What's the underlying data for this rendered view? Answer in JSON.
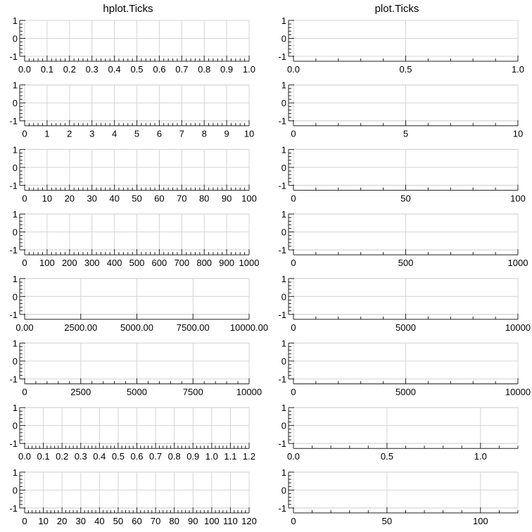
{
  "column_titles": [
    "hplot.Ticks",
    "plot.Ticks"
  ],
  "chart_data": [
    {
      "type": "line",
      "column": 0,
      "row": 0,
      "xlim": [
        0,
        1
      ],
      "ylim": [
        -1,
        1
      ],
      "x_ticks": [
        0,
        0.1,
        0.2,
        0.3,
        0.4,
        0.5,
        0.6,
        0.7,
        0.8,
        0.9,
        1.0
      ],
      "x_tick_labels": [
        "0.0",
        "0.1",
        "0.2",
        "0.3",
        "0.4",
        "0.5",
        "0.6",
        "0.7",
        "0.8",
        "0.9",
        "1.0"
      ],
      "x_minor_per_major": 4,
      "y_ticks": [
        -1,
        0,
        1
      ],
      "y_tick_labels": [
        "-1",
        "0",
        "1"
      ],
      "grid": true,
      "series": []
    },
    {
      "type": "line",
      "column": 1,
      "row": 0,
      "xlim": [
        0,
        1
      ],
      "ylim": [
        -1,
        1
      ],
      "x_ticks": [
        0,
        0.5,
        1.0
      ],
      "x_tick_labels": [
        "0.0",
        "0.5",
        "1.0"
      ],
      "x_minor_per_major": 4,
      "y_ticks": [
        -1,
        0,
        1
      ],
      "y_tick_labels": [
        "-1",
        "0",
        "1"
      ],
      "grid": true,
      "series": []
    },
    {
      "type": "line",
      "column": 0,
      "row": 1,
      "xlim": [
        0,
        10
      ],
      "ylim": [
        -1,
        1
      ],
      "x_ticks": [
        0,
        1,
        2,
        3,
        4,
        5,
        6,
        7,
        8,
        9,
        10
      ],
      "x_tick_labels": [
        "0",
        "1",
        "2",
        "3",
        "4",
        "5",
        "6",
        "7",
        "8",
        "9",
        "10"
      ],
      "x_minor_per_major": 4,
      "y_ticks": [
        -1,
        0,
        1
      ],
      "y_tick_labels": [
        "-1",
        "0",
        "1"
      ],
      "grid": true,
      "series": []
    },
    {
      "type": "line",
      "column": 1,
      "row": 1,
      "xlim": [
        0,
        10
      ],
      "ylim": [
        -1,
        1
      ],
      "x_ticks": [
        0,
        5,
        10
      ],
      "x_tick_labels": [
        "0",
        "5",
        "10"
      ],
      "x_minor_per_major": 4,
      "y_ticks": [
        -1,
        0,
        1
      ],
      "y_tick_labels": [
        "-1",
        "0",
        "1"
      ],
      "grid": true,
      "series": []
    },
    {
      "type": "line",
      "column": 0,
      "row": 2,
      "xlim": [
        0,
        100
      ],
      "ylim": [
        -1,
        1
      ],
      "x_ticks": [
        0,
        10,
        20,
        30,
        40,
        50,
        60,
        70,
        80,
        90,
        100
      ],
      "x_tick_labels": [
        "0",
        "10",
        "20",
        "30",
        "40",
        "50",
        "60",
        "70",
        "80",
        "90",
        "100"
      ],
      "x_minor_per_major": 4,
      "y_ticks": [
        -1,
        0,
        1
      ],
      "y_tick_labels": [
        "-1",
        "0",
        "1"
      ],
      "grid": true,
      "series": []
    },
    {
      "type": "line",
      "column": 1,
      "row": 2,
      "xlim": [
        0,
        100
      ],
      "ylim": [
        -1,
        1
      ],
      "x_ticks": [
        0,
        50,
        100
      ],
      "x_tick_labels": [
        "0",
        "50",
        "100"
      ],
      "x_minor_per_major": 4,
      "y_ticks": [
        -1,
        0,
        1
      ],
      "y_tick_labels": [
        "-1",
        "0",
        "1"
      ],
      "grid": true,
      "series": []
    },
    {
      "type": "line",
      "column": 0,
      "row": 3,
      "xlim": [
        0,
        1000
      ],
      "ylim": [
        -1,
        1
      ],
      "x_ticks": [
        0,
        100,
        200,
        300,
        400,
        500,
        600,
        700,
        800,
        900,
        1000
      ],
      "x_tick_labels": [
        "0",
        "100",
        "200",
        "300",
        "400",
        "500",
        "600",
        "700",
        "800",
        "900",
        "1000"
      ],
      "x_minor_per_major": 4,
      "y_ticks": [
        -1,
        0,
        1
      ],
      "y_tick_labels": [
        "-1",
        "0",
        "1"
      ],
      "grid": true,
      "series": []
    },
    {
      "type": "line",
      "column": 1,
      "row": 3,
      "xlim": [
        0,
        1000
      ],
      "ylim": [
        -1,
        1
      ],
      "x_ticks": [
        0,
        500,
        1000
      ],
      "x_tick_labels": [
        "0",
        "500",
        "1000"
      ],
      "x_minor_per_major": 4,
      "y_ticks": [
        -1,
        0,
        1
      ],
      "y_tick_labels": [
        "-1",
        "0",
        "1"
      ],
      "grid": true,
      "series": []
    },
    {
      "type": "line",
      "column": 0,
      "row": 4,
      "xlim": [
        0,
        10000
      ],
      "ylim": [
        -1,
        1
      ],
      "x_ticks": [
        0,
        2500,
        5000,
        7500,
        10000
      ],
      "x_tick_labels": [
        "0.00",
        "2500.00",
        "5000.00",
        "7500.00",
        "10000.00"
      ],
      "x_minor_per_major": 0,
      "y_ticks": [
        -1,
        0,
        1
      ],
      "y_tick_labels": [
        "-1",
        "0",
        "1"
      ],
      "grid": true,
      "series": []
    },
    {
      "type": "line",
      "column": 1,
      "row": 4,
      "xlim": [
        0,
        10000
      ],
      "ylim": [
        -1,
        1
      ],
      "x_ticks": [
        0,
        5000,
        10000
      ],
      "x_tick_labels": [
        "0",
        "5000",
        "10000"
      ],
      "x_minor_per_major": 4,
      "y_ticks": [
        -1,
        0,
        1
      ],
      "y_tick_labels": [
        "-1",
        "0",
        "1"
      ],
      "grid": true,
      "series": []
    },
    {
      "type": "line",
      "column": 0,
      "row": 5,
      "xlim": [
        0,
        10000
      ],
      "ylim": [
        -1,
        1
      ],
      "x_ticks": [
        0,
        2500,
        5000,
        7500,
        10000
      ],
      "x_tick_labels": [
        "0",
        "2500",
        "5000",
        "7500",
        "10000"
      ],
      "x_minor_per_major": 4,
      "y_ticks": [
        -1,
        0,
        1
      ],
      "y_tick_labels": [
        "-1",
        "0",
        "1"
      ],
      "grid": true,
      "series": []
    },
    {
      "type": "line",
      "column": 1,
      "row": 5,
      "xlim": [
        0,
        10000
      ],
      "ylim": [
        -1,
        1
      ],
      "x_ticks": [
        0,
        5000,
        10000
      ],
      "x_tick_labels": [
        "0",
        "5000",
        "10000"
      ],
      "x_minor_per_major": 4,
      "y_ticks": [
        -1,
        0,
        1
      ],
      "y_tick_labels": [
        "-1",
        "0",
        "1"
      ],
      "grid": true,
      "series": []
    },
    {
      "type": "line",
      "column": 0,
      "row": 6,
      "xlim": [
        0,
        1.2
      ],
      "ylim": [
        -1,
        1
      ],
      "x_ticks": [
        0,
        0.1,
        0.2,
        0.3,
        0.4,
        0.5,
        0.6,
        0.7,
        0.8,
        0.9,
        1.0,
        1.1,
        1.2
      ],
      "x_tick_labels": [
        "0.0",
        "0.1",
        "0.2",
        "0.3",
        "0.4",
        "0.5",
        "0.6",
        "0.7",
        "0.8",
        "0.9",
        "1.0",
        "1.1",
        "1.2"
      ],
      "x_minor_per_major": 4,
      "y_ticks": [
        -1,
        0,
        1
      ],
      "y_tick_labels": [
        "-1",
        "0",
        "1"
      ],
      "grid": true,
      "series": []
    },
    {
      "type": "line",
      "column": 1,
      "row": 6,
      "xlim": [
        0,
        1.2
      ],
      "ylim": [
        -1,
        1
      ],
      "x_ticks": [
        0,
        0.5,
        1.0
      ],
      "x_tick_labels": [
        "0.0",
        "0.5",
        "1.0"
      ],
      "x_minor_per_major": 4,
      "y_ticks": [
        -1,
        0,
        1
      ],
      "y_tick_labels": [
        "-1",
        "0",
        "1"
      ],
      "grid": true,
      "series": []
    },
    {
      "type": "line",
      "column": 0,
      "row": 7,
      "xlim": [
        0,
        120
      ],
      "ylim": [
        -1,
        1
      ],
      "x_ticks": [
        0,
        10,
        20,
        30,
        40,
        50,
        60,
        70,
        80,
        90,
        100,
        110,
        120
      ],
      "x_tick_labels": [
        "0",
        "10",
        "20",
        "30",
        "40",
        "50",
        "60",
        "70",
        "80",
        "90",
        "100",
        "110",
        "120"
      ],
      "x_minor_per_major": 4,
      "y_ticks": [
        -1,
        0,
        1
      ],
      "y_tick_labels": [
        "-1",
        "0",
        "1"
      ],
      "grid": true,
      "series": []
    },
    {
      "type": "line",
      "column": 1,
      "row": 7,
      "xlim": [
        0,
        120
      ],
      "ylim": [
        -1,
        1
      ],
      "x_ticks": [
        0,
        50,
        100
      ],
      "x_tick_labels": [
        "0",
        "50",
        "100"
      ],
      "x_minor_per_major": 4,
      "y_ticks": [
        -1,
        0,
        1
      ],
      "y_tick_labels": [
        "-1",
        "0",
        "1"
      ],
      "grid": true,
      "series": []
    }
  ]
}
